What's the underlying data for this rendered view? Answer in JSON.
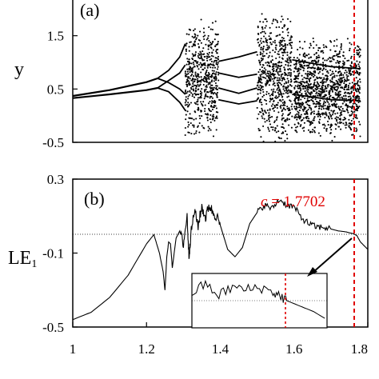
{
  "chart_data": [
    {
      "type": "scatter",
      "panel_label": "(a)",
      "ylabel": "y",
      "xlim": [
        1.0,
        1.8
      ],
      "ylim": [
        -0.5,
        2.2
      ],
      "yticks": [
        "1.5",
        "0.5",
        "-0.5"
      ],
      "ytick_values": [
        1.5,
        0.5,
        -0.5
      ],
      "grid": false,
      "marker_line": {
        "x": 1.7702,
        "color": "#e00000"
      },
      "description_series": [
        {
          "x": [
            1.0,
            1.1,
            1.2,
            1.23
          ],
          "y": [
            0.37,
            0.48,
            0.63,
            0.7
          ]
        },
        {
          "x": [
            1.0,
            1.1,
            1.2,
            1.23
          ],
          "y": [
            0.33,
            0.4,
            0.48,
            0.52
          ]
        }
      ],
      "chaotic_bands": [
        {
          "x": [
            1.305,
            1.395
          ],
          "y": [
            -0.25,
            1.85
          ]
        },
        {
          "x": [
            1.5,
            1.595
          ],
          "y": [
            -0.35,
            1.95
          ]
        },
        {
          "x": [
            1.6,
            1.78
          ],
          "y": [
            -0.3,
            1.5
          ]
        }
      ]
    },
    {
      "type": "line",
      "panel_label": "(b)",
      "ylabel": "LE₁",
      "xlim": [
        1.0,
        1.8
      ],
      "ylim": [
        -0.5,
        0.3
      ],
      "xticks": [
        "1",
        "1.2",
        "1.4",
        "1.6",
        "1.8"
      ],
      "xtick_values": [
        1.0,
        1.2,
        1.4,
        1.6,
        1.8
      ],
      "yticks": [
        "0.3",
        "-0.1",
        "-0.5"
      ],
      "ytick_values": [
        0.3,
        -0.1,
        -0.5
      ],
      "zero_line": 0.0,
      "grid": false,
      "annotation": {
        "text": "c = 1.7702",
        "x": 1.7702,
        "color": "#e00000"
      },
      "x": [
        1.0,
        1.05,
        1.1,
        1.15,
        1.2,
        1.22,
        1.235,
        1.245,
        1.25,
        1.255,
        1.26,
        1.265,
        1.27,
        1.28,
        1.29,
        1.3,
        1.31,
        1.315,
        1.32,
        1.33,
        1.34,
        1.35,
        1.36,
        1.37,
        1.38,
        1.39,
        1.4,
        1.42,
        1.44,
        1.46,
        1.48,
        1.5,
        1.52,
        1.54,
        1.56,
        1.58,
        1.6,
        1.62,
        1.64,
        1.66,
        1.68,
        1.7,
        1.72,
        1.74,
        1.76,
        1.7702,
        1.78,
        1.8
      ],
      "y": [
        -0.46,
        -0.42,
        -0.34,
        -0.22,
        -0.05,
        0.0,
        -0.1,
        -0.2,
        -0.3,
        -0.12,
        -0.04,
        -0.05,
        -0.18,
        -0.02,
        0.02,
        -0.05,
        0.1,
        -0.12,
        0.0,
        0.13,
        0.05,
        0.15,
        0.09,
        0.16,
        0.12,
        0.1,
        0.05,
        -0.08,
        -0.12,
        -0.07,
        0.06,
        0.12,
        0.16,
        0.14,
        0.19,
        0.16,
        0.15,
        0.09,
        0.06,
        0.04,
        0.04,
        0.03,
        0.02,
        0.015,
        0.005,
        -0.005,
        -0.04,
        -0.08
      ]
    }
  ],
  "inset": {
    "xlim": [
      1.7,
      1.8
    ],
    "ylim": [
      -0.1,
      0.1
    ],
    "x": [
      1.7,
      1.71,
      1.72,
      1.73,
      1.74,
      1.75,
      1.76,
      1.765,
      1.7702,
      1.78,
      1.79,
      1.8
    ],
    "y": [
      0.03,
      0.06,
      0.02,
      0.05,
      0.04,
      0.05,
      0.03,
      0.02,
      0.0,
      -0.02,
      -0.04,
      -0.07
    ]
  },
  "colors": {
    "annotation": "#e00000",
    "ink": "#000000"
  }
}
